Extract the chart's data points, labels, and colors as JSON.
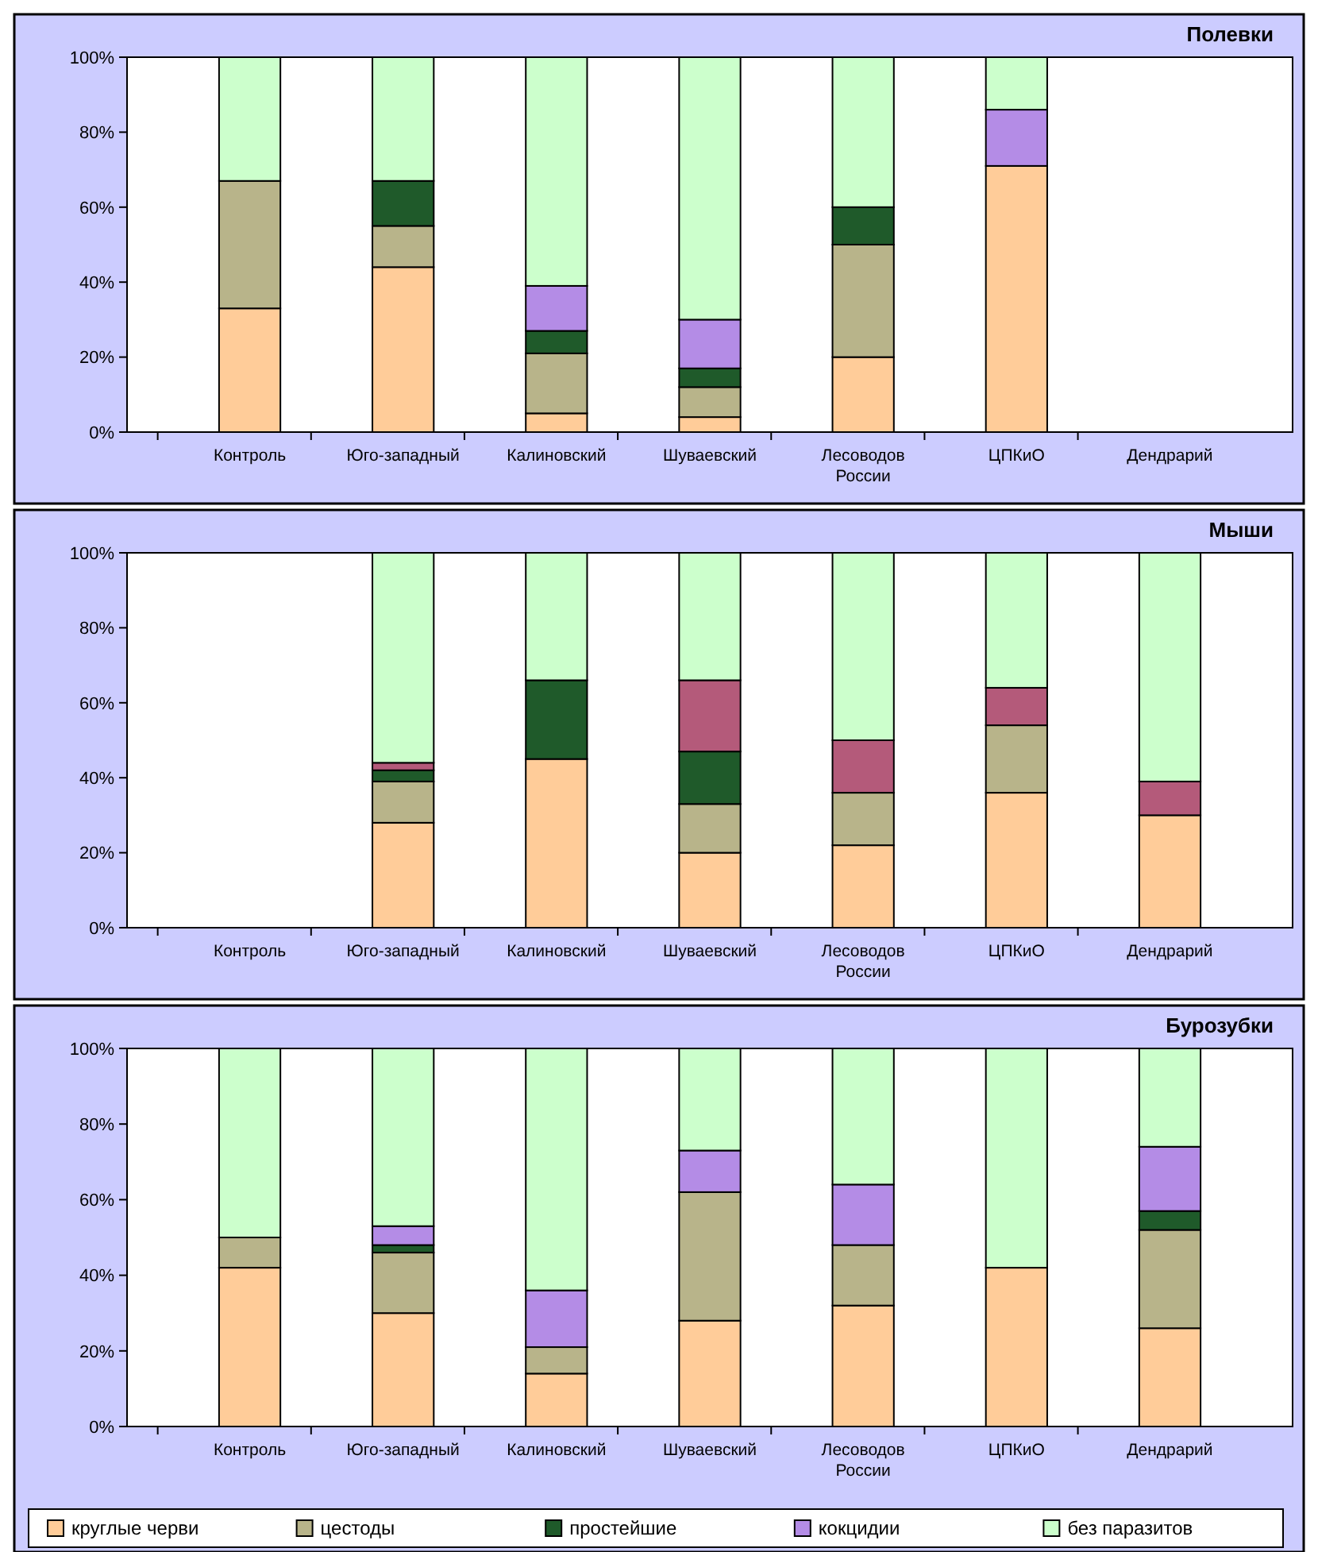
{
  "chart_data": [
    {
      "type": "bar",
      "title": "Полевки",
      "stacked": true,
      "categories": [
        "Контроль",
        "Юго-западный",
        "Калиновский",
        "Шуваевский",
        "Лесоводов России",
        "ЦПКиО",
        "Дендрарий"
      ],
      "ylim": [
        0,
        100
      ],
      "yticks": [
        {
          "value": 0,
          "label": "0%"
        },
        {
          "value": 20,
          "label": "20%"
        },
        {
          "value": 40,
          "label": "40%"
        },
        {
          "value": 60,
          "label": "60%"
        },
        {
          "value": 80,
          "label": "80%"
        },
        {
          "value": 100,
          "label": "100%"
        }
      ],
      "series": [
        {
          "color": "#ffcc99",
          "values": [
            33,
            44,
            5,
            4,
            20,
            71,
            0
          ]
        },
        {
          "color": "#b8b48a",
          "values": [
            34,
            11,
            16,
            8,
            30,
            0,
            0
          ]
        },
        {
          "color": "#1f5a2a",
          "values": [
            0,
            12,
            6,
            5,
            10,
            0,
            0
          ]
        },
        {
          "color": "#b48ce6",
          "values": [
            0,
            0,
            12,
            13,
            0,
            15,
            0
          ]
        },
        {
          "color": "#ccffcc",
          "values": [
            33,
            33,
            61,
            70,
            40,
            14,
            0
          ]
        }
      ]
    },
    {
      "type": "bar",
      "title": "Мыши",
      "stacked": true,
      "categories": [
        "Контроль",
        "Юго-западный",
        "Калиновский",
        "Шуваевский",
        "Лесоводов России",
        "ЦПКиО",
        "Дендрарий"
      ],
      "ylim": [
        0,
        100
      ],
      "yticks": [
        {
          "value": 0,
          "label": "0%"
        },
        {
          "value": 20,
          "label": "20%"
        },
        {
          "value": 40,
          "label": "40%"
        },
        {
          "value": 60,
          "label": "60%"
        },
        {
          "value": 80,
          "label": "80%"
        },
        {
          "value": 100,
          "label": "100%"
        }
      ],
      "series": [
        {
          "color": "#ffcc99",
          "values": [
            0,
            28,
            45,
            20,
            22,
            36,
            30
          ]
        },
        {
          "color": "#b8b48a",
          "values": [
            0,
            11,
            0,
            13,
            14,
            18,
            0
          ]
        },
        {
          "color": "#1f5a2a",
          "values": [
            0,
            3,
            21,
            14,
            0,
            0,
            0
          ]
        },
        {
          "color": "#b45a7a",
          "values": [
            0,
            2,
            0,
            19,
            14,
            10,
            9
          ]
        },
        {
          "color": "#ccffcc",
          "values": [
            0,
            56,
            34,
            34,
            50,
            36,
            61
          ]
        }
      ]
    },
    {
      "type": "bar",
      "title": "Бурозубки",
      "stacked": true,
      "legend": "bottom",
      "categories": [
        "Контроль",
        "Юго-западный",
        "Калиновский",
        "Шуваевский",
        "Лесоводов России",
        "ЦПКиО",
        "Дендрарий"
      ],
      "ylim": [
        0,
        100
      ],
      "yticks": [
        {
          "value": 0,
          "label": "0%"
        },
        {
          "value": 20,
          "label": "20%"
        },
        {
          "value": 40,
          "label": "40%"
        },
        {
          "value": 60,
          "label": "60%"
        },
        {
          "value": 80,
          "label": "80%"
        },
        {
          "value": 100,
          "label": "100%"
        }
      ],
      "series": [
        {
          "name": "круглые черви",
          "color": "#ffcc99",
          "values": [
            42,
            30,
            14,
            28,
            32,
            42,
            26
          ]
        },
        {
          "name": "цестоды",
          "color": "#b8b48a",
          "values": [
            8,
            16,
            7,
            34,
            16,
            0,
            26
          ]
        },
        {
          "name": "простейшие",
          "color": "#1f5a2a",
          "values": [
            0,
            2,
            0,
            0,
            0,
            0,
            5
          ]
        },
        {
          "name": "кокцидии",
          "color": "#b48ce6",
          "values": [
            0,
            5,
            15,
            11,
            16,
            0,
            17
          ]
        },
        {
          "name": "без паразитов",
          "color": "#ccffcc",
          "values": [
            50,
            47,
            64,
            27,
            36,
            58,
            26
          ]
        }
      ]
    }
  ]
}
